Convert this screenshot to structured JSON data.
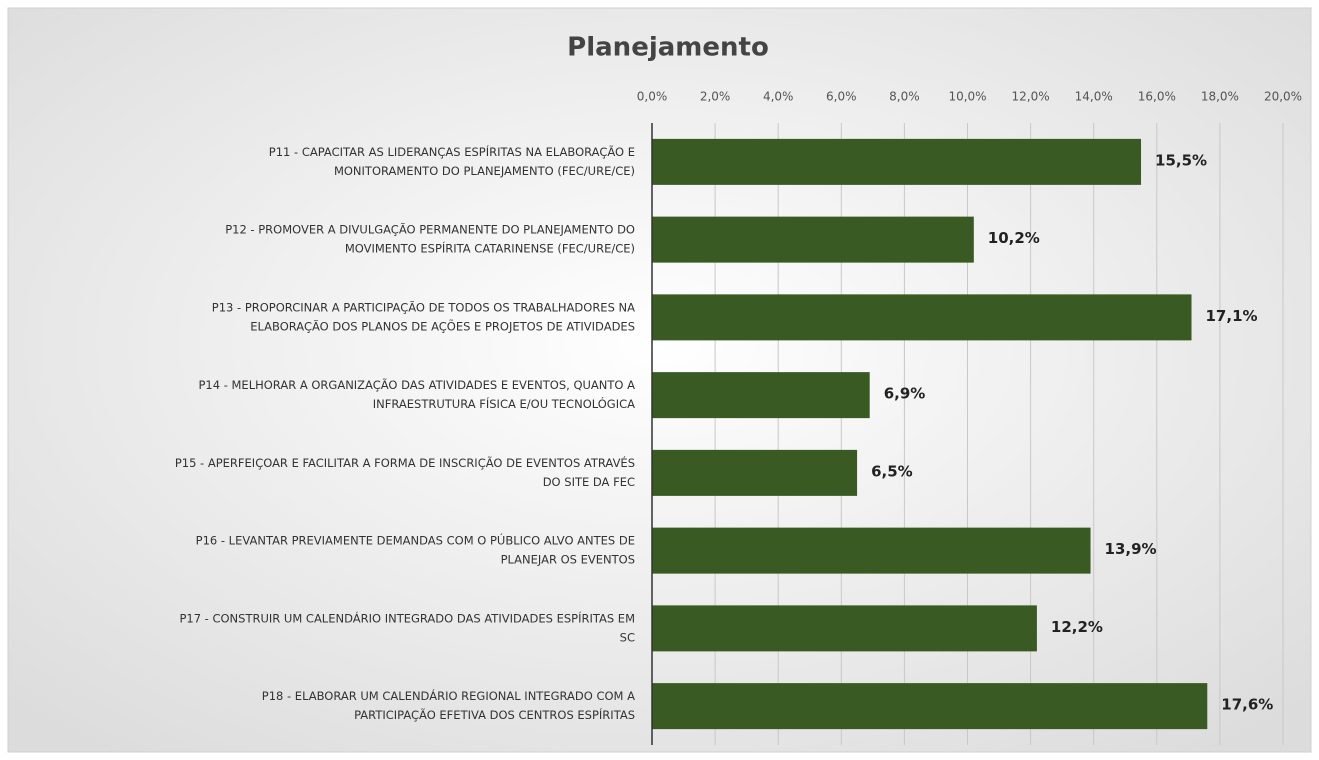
{
  "chart_data": {
    "type": "bar",
    "orientation": "horizontal",
    "title": "Planejamento",
    "categories": [
      [
        "P11 - CAPACITAR AS LIDERANÇAS ESPÍRITAS NA ELABORAÇÃO E",
        "MONITORAMENTO DO PLANEJAMENTO (FEC/URE/CE)"
      ],
      [
        "P12 - PROMOVER A DIVULGAÇÃO PERMANENTE DO PLANEJAMENTO DO",
        "MOVIMENTO ESPÍRITA CATARINENSE (FEC/URE/CE)"
      ],
      [
        "P13 - PROPORCINAR A PARTICIPAÇÃO DE TODOS OS TRABALHADORES NA",
        "ELABORAÇÃO DOS PLANOS DE AÇÕES E PROJETOS DE ATIVIDADES"
      ],
      [
        "P14 - MELHORAR A ORGANIZAÇÃO DAS ATIVIDADES E EVENTOS, QUANTO A",
        "INFRAESTRUTURA FÍSICA E/OU TECNOLÓGICA"
      ],
      [
        "P15 - APERFEIÇOAR E FACILITAR A FORMA DE INSCRIÇÃO DE EVENTOS ATRAVÉS",
        "DO SITE DA FEC"
      ],
      [
        "P16 - LEVANTAR PREVIAMENTE DEMANDAS COM O PÚBLICO ALVO ANTES DE",
        "PLANEJAR OS EVENTOS"
      ],
      [
        "P17 - CONSTRUIR UM CALENDÁRIO INTEGRADO DAS ATIVIDADES ESPÍRITAS EM",
        "SC"
      ],
      [
        "P18 - ELABORAR UM CALENDÁRIO REGIONAL INTEGRADO COM A",
        "PARTICIPAÇÃO EFETIVA DOS CENTROS ESPÍRITAS"
      ]
    ],
    "values": [
      15.5,
      10.2,
      17.1,
      6.9,
      6.5,
      13.9,
      12.2,
      17.6
    ],
    "value_labels": [
      "15,5%",
      "10,2%",
      "17,1%",
      "6,9%",
      "6,5%",
      "13,9%",
      "12,2%",
      "17,6%"
    ],
    "color": "#3a5a24",
    "xlim": [
      0,
      20
    ],
    "xticks": [
      {
        "value": 0,
        "label": "0,0%"
      },
      {
        "value": 2,
        "label": "2,0%"
      },
      {
        "value": 4,
        "label": "4,0%"
      },
      {
        "value": 6,
        "label": "6,0%"
      },
      {
        "value": 8,
        "label": "8,0%"
      },
      {
        "value": 10,
        "label": "10,0%"
      },
      {
        "value": 12,
        "label": "12,0%"
      },
      {
        "value": 14,
        "label": "14,0%"
      },
      {
        "value": 16,
        "label": "16,0%"
      },
      {
        "value": 18,
        "label": "18,0%"
      },
      {
        "value": 20,
        "label": "20,0%"
      }
    ],
    "grid": true
  }
}
